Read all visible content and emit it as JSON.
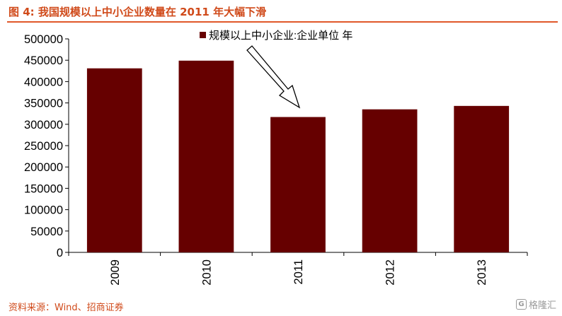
{
  "page": {
    "title": "图 4:  我国规模以上中小企业数量在 2011 年大幅下滑",
    "source": "资料来源：Wind、招商证券",
    "watermark": "格隆汇",
    "watermark_icon": "G",
    "colors": {
      "title": "#d04a1a",
      "rule": "#e0582a",
      "bar": "#660000",
      "source": "#d04a1a"
    }
  },
  "chart_data": {
    "type": "bar",
    "categories": [
      "2009",
      "2010",
      "2011",
      "2012",
      "2013"
    ],
    "series": [
      {
        "name": "规模以上中小企业:企业单位 年",
        "values": [
          431000,
          449000,
          317000,
          335000,
          343000
        ]
      }
    ],
    "title": "",
    "xlabel": "",
    "ylabel": "",
    "ylim": [
      0,
      500000
    ],
    "yticks": [
      "0",
      "50000",
      "100000",
      "150000",
      "200000",
      "250000",
      "300000",
      "350000",
      "400000",
      "450000",
      "500000"
    ],
    "grid": false,
    "legend_position": "top",
    "annotation": "arrow pointing down to the 2011 bar"
  }
}
